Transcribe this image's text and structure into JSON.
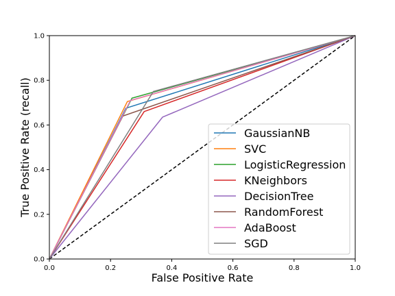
{
  "chart_data": {
    "type": "line",
    "title": "",
    "xlabel": "False Positive Rate",
    "ylabel": "True Positive Rate (recall)",
    "xlim": [
      0.0,
      1.0
    ],
    "ylim": [
      0.0,
      1.0
    ],
    "xticks": [
      "0.0",
      "0.2",
      "0.4",
      "0.6",
      "0.8",
      "1.0"
    ],
    "yticks": [
      "0.0",
      "0.2",
      "0.4",
      "0.6",
      "0.8",
      "1.0"
    ],
    "grid": false,
    "legend_position": "lower-right",
    "series": [
      {
        "name": "GaussianNB",
        "color": "#1f77b4",
        "x": [
          0,
          0.25,
          1
        ],
        "y": [
          0,
          0.675,
          1
        ]
      },
      {
        "name": "SVC",
        "color": "#ff7f0e",
        "x": [
          0,
          0.255,
          1
        ],
        "y": [
          0,
          0.705,
          1
        ]
      },
      {
        "name": "LogisticRegression",
        "color": "#2ca02c",
        "x": [
          0,
          0.27,
          1
        ],
        "y": [
          0,
          0.72,
          1
        ]
      },
      {
        "name": "KNeighbors",
        "color": "#d62728",
        "x": [
          0,
          0.31,
          1
        ],
        "y": [
          0,
          0.66,
          1
        ]
      },
      {
        "name": "DecisionTree",
        "color": "#9467bd",
        "x": [
          0,
          0.37,
          1
        ],
        "y": [
          0,
          0.635,
          1
        ]
      },
      {
        "name": "RandomForest",
        "color": "#8c564b",
        "x": [
          0,
          0.24,
          1
        ],
        "y": [
          0,
          0.64,
          1
        ]
      },
      {
        "name": "AdaBoost",
        "color": "#e377c2",
        "x": [
          0,
          0.265,
          1
        ],
        "y": [
          0,
          0.71,
          1
        ]
      },
      {
        "name": "SGD",
        "color": "#7f7f7f",
        "x": [
          0,
          0.34,
          1
        ],
        "y": [
          0,
          0.75,
          1
        ]
      }
    ],
    "reference_line": {
      "x": [
        0,
        1
      ],
      "y": [
        0,
        1
      ],
      "color": "#000000",
      "style": "dashed"
    }
  }
}
